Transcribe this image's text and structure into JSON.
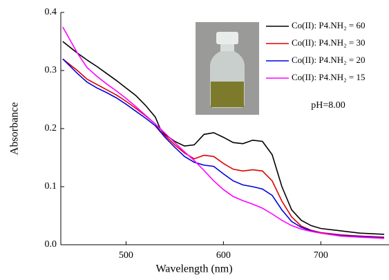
{
  "chart_data": {
    "type": "line",
    "x_label": "Wavelength (nm)",
    "y_label": "Absorbance",
    "annotation": "pH=8.00",
    "x": [
      435,
      450,
      460,
      470,
      480,
      490,
      500,
      510,
      520,
      530,
      535,
      540,
      550,
      560,
      570,
      580,
      590,
      600,
      610,
      620,
      630,
      640,
      650,
      660,
      670,
      680,
      690,
      700,
      720,
      740,
      765
    ],
    "series": [
      {
        "name": "Co(II): P4.NH₂ = 60",
        "color": "#000000",
        "values": [
          0.35,
          0.33,
          0.318,
          0.307,
          0.295,
          0.283,
          0.27,
          0.257,
          0.24,
          0.22,
          0.2,
          0.19,
          0.178,
          0.17,
          0.172,
          0.19,
          0.193,
          0.185,
          0.176,
          0.174,
          0.18,
          0.178,
          0.155,
          0.1,
          0.06,
          0.042,
          0.033,
          0.028,
          0.024,
          0.02,
          0.018
        ]
      },
      {
        "name": "Co(II): P4.NH₂ = 30",
        "color": "#e00000",
        "values": [
          0.32,
          0.3,
          0.285,
          0.276,
          0.267,
          0.258,
          0.247,
          0.235,
          0.222,
          0.208,
          0.196,
          0.188,
          0.172,
          0.158,
          0.148,
          0.154,
          0.152,
          0.14,
          0.13,
          0.127,
          0.129,
          0.127,
          0.11,
          0.075,
          0.048,
          0.032,
          0.025,
          0.021,
          0.017,
          0.015,
          0.013
        ]
      },
      {
        "name": "Co(II): P4.NH₂ = 20",
        "color": "#0000e0",
        "values": [
          0.32,
          0.295,
          0.28,
          0.27,
          0.262,
          0.253,
          0.242,
          0.23,
          0.218,
          0.205,
          0.195,
          0.185,
          0.168,
          0.152,
          0.142,
          0.137,
          0.135,
          0.122,
          0.11,
          0.103,
          0.1,
          0.096,
          0.085,
          0.06,
          0.04,
          0.03,
          0.024,
          0.02,
          0.016,
          0.014,
          0.012
        ]
      },
      {
        "name": "Co(II): P4.NH₂ = 15",
        "color": "#ff00ff",
        "values": [
          0.375,
          0.33,
          0.305,
          0.29,
          0.277,
          0.265,
          0.252,
          0.238,
          0.223,
          0.208,
          0.2,
          0.192,
          0.176,
          0.16,
          0.145,
          0.128,
          0.11,
          0.095,
          0.083,
          0.076,
          0.07,
          0.063,
          0.053,
          0.042,
          0.033,
          0.027,
          0.023,
          0.02,
          0.015,
          0.013,
          0.011
        ]
      }
    ],
    "xlim": [
      433,
      770
    ],
    "xticks": [
      500,
      600,
      700
    ],
    "ylim": [
      0,
      0.4
    ],
    "yticks": [
      {
        "value": 0,
        "label": "0.0"
      },
      0.1,
      0.2,
      0.3,
      0.4
    ]
  }
}
